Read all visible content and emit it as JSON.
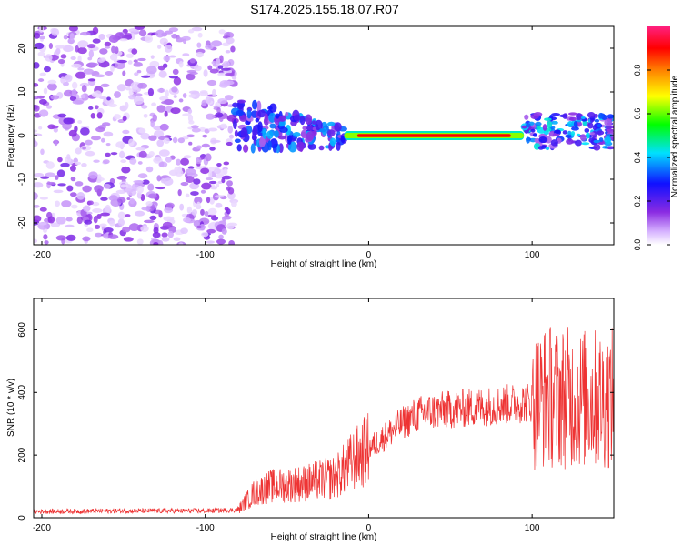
{
  "title": "S174.2025.155.18.07.R07",
  "chart_data": [
    {
      "type": "heatmap",
      "xlabel": "Height of straight line (km)",
      "ylabel": "Frequency (Hz)",
      "xlim": [
        -205,
        150
      ],
      "ylim": [
        -25,
        25
      ],
      "xticks": [
        -200,
        -100,
        0,
        100
      ],
      "yticks": [
        -20,
        -10,
        0,
        10,
        20
      ],
      "colorbar": {
        "label": "Normalized spectral amplitude",
        "range": [
          0,
          1
        ],
        "ticks": [
          "0.0",
          "0.2",
          "0.4",
          "0.6",
          "0.8"
        ],
        "colormap": "rainbow (white-purple-blue-cyan-green-yellow-orange-red-magenta)"
      },
      "features": [
        {
          "label": "noise",
          "x_range": [
            -205,
            -82
          ],
          "freq_range": [
            -25,
            25
          ],
          "amplitude": [
            0.0,
            0.15
          ]
        },
        {
          "label": "onset",
          "x_range": [
            -82,
            -15
          ],
          "freq_range": [
            -3,
            9
          ],
          "amplitude": [
            0.1,
            0.4
          ]
        },
        {
          "label": "line",
          "x_range": [
            -15,
            95
          ],
          "freq_hz": 0,
          "amplitude": [
            0.5,
            0.95
          ]
        },
        {
          "label": "tail",
          "x_range": [
            95,
            150
          ],
          "freq_range": [
            -3,
            5
          ],
          "amplitude": [
            0.1,
            0.45
          ]
        }
      ]
    },
    {
      "type": "line",
      "xlabel": "Height of straight line (km)",
      "ylabel": "SNR (10 * v/v)",
      "xlim": [
        -205,
        150
      ],
      "ylim": [
        0,
        700
      ],
      "xticks": [
        -200,
        -100,
        0,
        100
      ],
      "yticks": [
        0,
        200,
        400,
        600
      ],
      "color": "#ee3333",
      "series_envelope": [
        {
          "x": -205,
          "y": 20
        },
        {
          "x": -150,
          "y": 22
        },
        {
          "x": -100,
          "y": 22
        },
        {
          "x": -80,
          "y": 25
        },
        {
          "x": -70,
          "y": 80
        },
        {
          "x": -60,
          "y": 100
        },
        {
          "x": -40,
          "y": 110
        },
        {
          "x": -20,
          "y": 130
        },
        {
          "x": -10,
          "y": 180
        },
        {
          "x": 0,
          "y": 220
        },
        {
          "x": 10,
          "y": 260
        },
        {
          "x": 20,
          "y": 300
        },
        {
          "x": 30,
          "y": 330
        },
        {
          "x": 40,
          "y": 340
        },
        {
          "x": 60,
          "y": 350
        },
        {
          "x": 80,
          "y": 360
        },
        {
          "x": 100,
          "y": 370
        },
        {
          "x": 110,
          "y": 390
        },
        {
          "x": 130,
          "y": 380
        },
        {
          "x": 150,
          "y": 380
        }
      ]
    }
  ]
}
